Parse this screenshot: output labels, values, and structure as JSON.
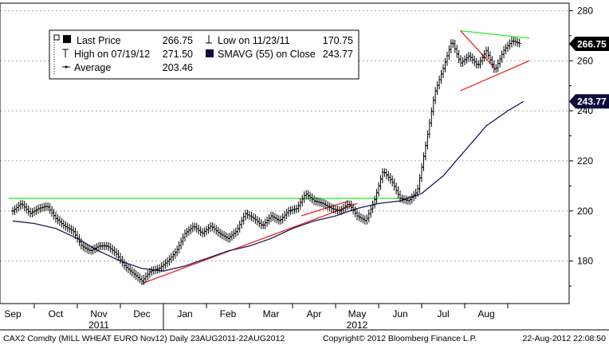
{
  "chart_data": {
    "type": "line",
    "style": "ohlc-bars",
    "ticker": "CAX2 Comdty (MILL WHEAT EURO Nov12) Daily",
    "y_ticks": [
      "180",
      "200",
      "220",
      "240",
      "260",
      "280"
    ],
    "ylim": [
      163,
      283
    ],
    "grid": true,
    "months": [
      "Sep",
      "Oct",
      "Nov",
      "Dec",
      "Jan",
      "Feb",
      "Mar",
      "Apr",
      "May",
      "Jun",
      "Jul",
      "Aug"
    ],
    "years": [
      {
        "label": "2011",
        "month_index": 2
      },
      {
        "label": "2012",
        "month_index": 8
      }
    ],
    "legend": {
      "position": "top-left",
      "rows": [
        [
          {
            "label": "Last Price",
            "value": "266.75",
            "marker": "square"
          },
          {
            "label": "Low on 11/23/11",
            "value": "170.75",
            "marker": "low"
          }
        ],
        [
          {
            "label": "High on 07/19/12",
            "value": "271.50",
            "marker": "high"
          },
          {
            "label": "SMAVG (55) on Close",
            "value": "243.77",
            "marker": "navy-square"
          }
        ],
        [
          {
            "label": "Average",
            "value": "203.46",
            "marker": "avg"
          }
        ]
      ]
    },
    "last_price_label": "266.75",
    "sma_label": "243.77",
    "colors": {
      "price": "#000000",
      "sma": "#1a1a5c",
      "trend_green": "#33ee33",
      "trend_red": "#ee2222",
      "sma_label_bg": "#0b0b3b",
      "grid": "#aaaaaa"
    },
    "series": [
      {
        "name": "Last Price",
        "kind": "ohlc",
        "points": [
          [
            0,
            200
          ],
          [
            0.2,
            203
          ],
          [
            0.4,
            199
          ],
          [
            0.6,
            201
          ],
          [
            0.8,
            202
          ],
          [
            1,
            197
          ],
          [
            1.2,
            194
          ],
          [
            1.4,
            192
          ],
          [
            1.6,
            186
          ],
          [
            1.8,
            184
          ],
          [
            2,
            186
          ],
          [
            2.2,
            186
          ],
          [
            2.4,
            183
          ],
          [
            2.6,
            178
          ],
          [
            2.8,
            175
          ],
          [
            3,
            172
          ],
          [
            3.2,
            176
          ],
          [
            3.4,
            177
          ],
          [
            3.6,
            180
          ],
          [
            3.8,
            184
          ],
          [
            4,
            191
          ],
          [
            4.2,
            194
          ],
          [
            4.4,
            191
          ],
          [
            4.6,
            194
          ],
          [
            4.8,
            191
          ],
          [
            5,
            189
          ],
          [
            5.2,
            192
          ],
          [
            5.4,
            199
          ],
          [
            5.6,
            197
          ],
          [
            5.8,
            194
          ],
          [
            6,
            198
          ],
          [
            6.2,
            196
          ],
          [
            6.4,
            200
          ],
          [
            6.6,
            201
          ],
          [
            6.8,
            207
          ],
          [
            7,
            204
          ],
          [
            7.2,
            203
          ],
          [
            7.4,
            201
          ],
          [
            7.6,
            200
          ],
          [
            7.8,
            203
          ],
          [
            8,
            198
          ],
          [
            8.2,
            196
          ],
          [
            8.4,
            204
          ],
          [
            8.6,
            216
          ],
          [
            8.8,
            212
          ],
          [
            9,
            205
          ],
          [
            9.2,
            204
          ],
          [
            9.4,
            208
          ],
          [
            9.6,
            227
          ],
          [
            9.8,
            247
          ],
          [
            10,
            257
          ],
          [
            10.2,
            268
          ],
          [
            10.4,
            259
          ],
          [
            10.6,
            262
          ],
          [
            10.8,
            258
          ],
          [
            11,
            264
          ],
          [
            11.2,
            256
          ],
          [
            11.4,
            264
          ],
          [
            11.6,
            268
          ],
          [
            11.8,
            266.75
          ]
        ]
      },
      {
        "name": "SMAVG (55) on Close",
        "kind": "line",
        "points": [
          [
            0,
            196
          ],
          [
            0.5,
            195
          ],
          [
            1,
            193
          ],
          [
            1.5,
            189
          ],
          [
            2,
            184
          ],
          [
            2.5,
            180
          ],
          [
            3,
            177
          ],
          [
            3.5,
            176
          ],
          [
            4,
            178
          ],
          [
            4.5,
            181
          ],
          [
            5,
            184
          ],
          [
            5.5,
            186
          ],
          [
            6,
            189
          ],
          [
            6.5,
            193
          ],
          [
            7,
            196
          ],
          [
            7.5,
            198
          ],
          [
            8,
            201
          ],
          [
            8.5,
            203
          ],
          [
            9,
            204
          ],
          [
            9.5,
            207
          ],
          [
            10,
            214
          ],
          [
            10.5,
            224
          ],
          [
            11,
            234
          ],
          [
            11.5,
            240
          ],
          [
            11.87,
            243.77
          ]
        ]
      }
    ],
    "trendlines": [
      {
        "color": "green",
        "points": [
          [
            -0.1,
            205
          ],
          [
            9.1,
            205
          ]
        ]
      },
      {
        "color": "red",
        "points": [
          [
            3,
            171
          ],
          [
            8,
            203
          ]
        ]
      },
      {
        "color": "red",
        "points": [
          [
            6.7,
            198
          ],
          [
            7.8,
            204
          ]
        ]
      },
      {
        "color": "green",
        "points": [
          [
            10.4,
            272
          ],
          [
            12,
            269
          ]
        ]
      },
      {
        "color": "red",
        "points": [
          [
            10.4,
            272
          ],
          [
            11.2,
            257
          ]
        ]
      },
      {
        "color": "red",
        "points": [
          [
            10.4,
            248
          ],
          [
            12,
            260
          ]
        ]
      }
    ]
  },
  "footer": {
    "left": "CAX2 Comdty (MILL WHEAT EURO Nov12) Daily 23AUG2011-22AUG2012",
    "center": "Copyright© 2012 Bloomberg Finance L.P.",
    "right": "22-Aug-2012 22:08:50"
  }
}
